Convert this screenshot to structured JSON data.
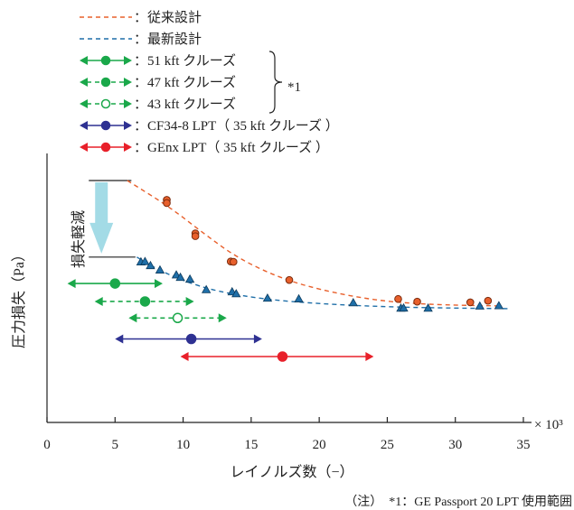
{
  "chart_data": {
    "type": "scatter",
    "xlabel": "レイノルズ数（−）",
    "ylabel": "圧力損失（Pa）",
    "x_multiplier": "× 10³",
    "xlim": [
      0,
      35
    ],
    "x_ticks": [
      0,
      5,
      10,
      15,
      20,
      25,
      30,
      35
    ],
    "y_unit_note": "no numeric y scale shown",
    "legend": [
      {
        "key": "conventional",
        "label": "：従来設計",
        "style": "dashed-line",
        "color": "#e8602c"
      },
      {
        "key": "latest",
        "label": "：最新設計",
        "style": "dashed-line",
        "color": "#1f6fa8"
      },
      {
        "key": "c51",
        "label": "：51 kft クルーズ",
        "style": "solid-range",
        "color": "#1aa84a"
      },
      {
        "key": "c47",
        "label": "：47 kft クルーズ",
        "style": "dashed-range",
        "color": "#1aa84a"
      },
      {
        "key": "c43",
        "label": "：43 kft クルーズ",
        "style": "dashed-range-open",
        "color": "#1aa84a"
      },
      {
        "key": "cf34",
        "label": "：CF34-8 LPT（ 35 kft クルーズ ）",
        "style": "solid-range",
        "color": "#2e3192"
      },
      {
        "key": "genx",
        "label": "：GEnx LPT（ 35 kft クルーズ ）",
        "style": "solid-range",
        "color": "#e8202a"
      }
    ],
    "bracket_label": "*1",
    "annotation": "損失軽減",
    "note": "（注）　*1：GE Passport 20 LPT 使用範囲",
    "series": [
      {
        "key": "conventional",
        "marker": "circle",
        "points": [
          [
            8.8,
            0.89
          ],
          [
            8.8,
            0.872
          ],
          [
            10.9,
            0.7
          ],
          [
            10.9,
            0.684
          ],
          [
            13.5,
            0.54
          ],
          [
            13.7,
            0.538
          ],
          [
            17.8,
            0.435
          ],
          [
            25.8,
            0.327
          ],
          [
            27.2,
            0.312
          ],
          [
            31.1,
            0.308
          ],
          [
            32.4,
            0.317
          ]
        ]
      },
      {
        "key": "latest",
        "marker": "triangle",
        "points": [
          [
            6.9,
            0.538
          ],
          [
            7.2,
            0.54
          ],
          [
            7.6,
            0.517
          ],
          [
            8.3,
            0.492
          ],
          [
            9.5,
            0.464
          ],
          [
            9.8,
            0.45
          ],
          [
            10.5,
            0.44
          ],
          [
            11.7,
            0.38
          ],
          [
            13.6,
            0.368
          ],
          [
            13.9,
            0.357
          ],
          [
            16.2,
            0.332
          ],
          [
            18.5,
            0.328
          ],
          [
            22.5,
            0.306
          ],
          [
            26.0,
            0.275
          ],
          [
            26.2,
            0.276
          ],
          [
            28.0,
            0.275
          ],
          [
            31.8,
            0.287
          ],
          [
            33.2,
            0.289
          ]
        ]
      }
    ],
    "fits": [
      {
        "key": "conventional",
        "points": [
          [
            5.9,
            1.0
          ],
          [
            9.0,
            0.85
          ],
          [
            11.5,
            0.7
          ],
          [
            14.0,
            0.56
          ],
          [
            17.0,
            0.45
          ],
          [
            20.0,
            0.38
          ],
          [
            24.0,
            0.32
          ],
          [
            28.0,
            0.295
          ],
          [
            33.0,
            0.288
          ]
        ]
      },
      {
        "key": "latest",
        "points": [
          [
            6.6,
            0.565
          ],
          [
            8.0,
            0.5
          ],
          [
            10.0,
            0.43
          ],
          [
            12.5,
            0.37
          ],
          [
            16.0,
            0.325
          ],
          [
            20.0,
            0.3
          ],
          [
            25.0,
            0.282
          ],
          [
            30.0,
            0.275
          ],
          [
            34.0,
            0.272
          ]
        ]
      }
    ],
    "ranges": [
      {
        "key": "c51",
        "x_min": 1.5,
        "x_max": 8.5,
        "x_mid": 5.0,
        "marker": "filled",
        "line": "solid",
        "level": 0.415
      },
      {
        "key": "c47",
        "x_min": 3.5,
        "x_max": 10.8,
        "x_mid": 7.2,
        "marker": "filled",
        "line": "dashed",
        "level": 0.313
      },
      {
        "key": "c43",
        "x_min": 6.0,
        "x_max": 13.2,
        "x_mid": 9.6,
        "marker": "open",
        "line": "dashed",
        "level": 0.219
      },
      {
        "key": "cf34",
        "x_min": 5.0,
        "x_max": 15.8,
        "x_mid": 10.6,
        "marker": "filled",
        "line": "solid",
        "level": 0.1
      },
      {
        "key": "genx",
        "x_min": 9.8,
        "x_max": 24.0,
        "x_mid": 17.3,
        "marker": "filled",
        "line": "solid",
        "level": 0.0
      }
    ],
    "loss_reduction_arrow": {
      "x": 4.0,
      "from": 1.0,
      "to": 0.565
    }
  }
}
